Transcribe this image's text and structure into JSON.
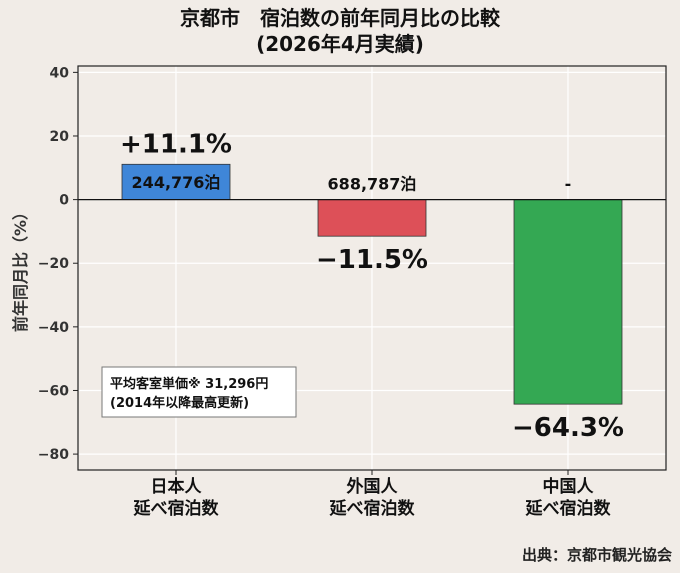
{
  "title_line1": "京都市　宿泊数の前年同月比の比較",
  "title_line2": "(2026年4月実績)",
  "source": "出典：京都市観光協会",
  "chart_data": {
    "type": "bar",
    "ylabel": "前年同月比（%）",
    "ylim": [
      -85,
      42
    ],
    "yticks": [
      40,
      20,
      0,
      -20,
      -40,
      -60,
      -80
    ],
    "ytick_labels": [
      "40",
      "20",
      "0",
      "−20",
      "−40",
      "−60",
      "−80"
    ],
    "grid": true,
    "categories": [
      {
        "line1": "日本人",
        "line2": "延べ宿泊数"
      },
      {
        "line1": "外国人",
        "line2": "延べ宿泊数"
      },
      {
        "line1": "中国人",
        "line2": "延べ宿泊数"
      }
    ],
    "values": [
      11.1,
      -11.5,
      -64.3
    ],
    "value_labels": [
      "+11.1%",
      "−11.5%",
      "−64.3%"
    ],
    "count_labels": [
      "244,776泊",
      "688,787泊",
      "-"
    ],
    "colors": [
      "#3f86d8",
      "#dd5058",
      "#34a853"
    ],
    "annotation": {
      "line1": "平均客室単価※ 31,296円",
      "line2": "(2014年以降最高更新)"
    }
  }
}
